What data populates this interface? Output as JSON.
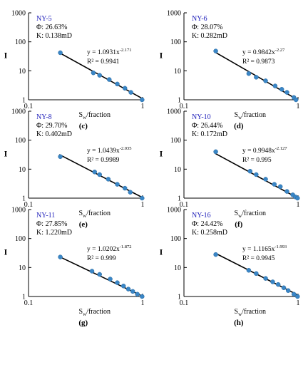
{
  "figure": {
    "xlabel_main": "S",
    "xlabel_sub": "w",
    "xlabel_rest": "/fraction",
    "ylabel": "I",
    "x_ticks": [
      "0.1",
      "1"
    ],
    "y_ticks": [
      "1",
      "10",
      "100",
      "1000"
    ]
  },
  "chart_data": [
    {
      "type": "scatter",
      "panel": "(c)",
      "sample": "NY-5",
      "porosity": "Φ:  26.63%",
      "permeability": "K:  0.138mD",
      "fit": {
        "a": "1.0931",
        "b": "-2.171",
        "r2": "0.9941"
      },
      "xlim": [
        0.1,
        1
      ],
      "ylim": [
        1,
        1000
      ],
      "xscale": "log",
      "yscale": "log",
      "grid": false,
      "points": [
        [
          0.19,
          42
        ],
        [
          0.37,
          8.5
        ],
        [
          0.42,
          7
        ],
        [
          0.51,
          5
        ],
        [
          0.6,
          3.5
        ],
        [
          0.7,
          2.5
        ],
        [
          0.79,
          1.8
        ],
        [
          0.99,
          1
        ]
      ]
    },
    {
      "type": "scatter",
      "panel": "(d)",
      "sample": "NY-6",
      "porosity": "Φ:  28.07%",
      "permeability": "K:  0.282mD",
      "fit": {
        "a": "0.9842",
        "b": "-2.27",
        "r2": "0.9873"
      },
      "xlim": [
        0.1,
        1
      ],
      "ylim": [
        1,
        1000
      ],
      "xscale": "log",
      "yscale": "log",
      "grid": false,
      "points": [
        [
          0.19,
          48
        ],
        [
          0.37,
          8
        ],
        [
          0.43,
          6
        ],
        [
          0.52,
          4.5
        ],
        [
          0.63,
          3
        ],
        [
          0.72,
          2.3
        ],
        [
          0.8,
          1.8
        ],
        [
          0.92,
          1.2
        ],
        [
          0.96,
          1
        ]
      ]
    },
    {
      "type": "scatter",
      "panel": "(e)",
      "sample": "NY-8",
      "porosity": "Φ:  29.70%",
      "permeability": "K:  0.402mD",
      "fit": {
        "a": "1.0439",
        "b": "-2.035",
        "r2": "0.9989"
      },
      "xlim": [
        0.1,
        1
      ],
      "ylim": [
        1,
        1000
      ],
      "xscale": "log",
      "yscale": "log",
      "grid": false,
      "points": [
        [
          0.19,
          27
        ],
        [
          0.38,
          8
        ],
        [
          0.42,
          6.5
        ],
        [
          0.5,
          4.5
        ],
        [
          0.6,
          3
        ],
        [
          0.7,
          2.2
        ],
        [
          0.78,
          1.6
        ],
        [
          0.99,
          1
        ]
      ]
    },
    {
      "type": "scatter",
      "panel": "(f)",
      "sample": "NY-10",
      "porosity": "Φ:  26.44%",
      "permeability": "K:  0.172mD",
      "fit": {
        "a": "0.9948",
        "b": "-2.127",
        "r2": "0.995"
      },
      "xlim": [
        0.1,
        1
      ],
      "ylim": [
        1,
        1000
      ],
      "xscale": "log",
      "yscale": "log",
      "grid": false,
      "points": [
        [
          0.19,
          40
        ],
        [
          0.38,
          8.5
        ],
        [
          0.43,
          6.5
        ],
        [
          0.52,
          4.5
        ],
        [
          0.62,
          3
        ],
        [
          0.7,
          2.5
        ],
        [
          0.8,
          1.7
        ],
        [
          0.9,
          1.3
        ],
        [
          0.95,
          1.1
        ],
        [
          0.99,
          1
        ]
      ]
    },
    {
      "type": "scatter",
      "panel": "(g)",
      "sample": "NY-11",
      "porosity": "Φ:  27.85%",
      "permeability": "K:  1.220mD",
      "fit": {
        "a": "1.0202",
        "b": "-1.872",
        "r2": "0.999"
      },
      "xlim": [
        0.1,
        1
      ],
      "ylim": [
        1,
        1000
      ],
      "xscale": "log",
      "yscale": "log",
      "grid": false,
      "points": [
        [
          0.19,
          23
        ],
        [
          0.36,
          7.5
        ],
        [
          0.42,
          5.8
        ],
        [
          0.52,
          4
        ],
        [
          0.6,
          3
        ],
        [
          0.68,
          2.3
        ],
        [
          0.75,
          1.8
        ],
        [
          0.82,
          1.5
        ],
        [
          0.9,
          1.2
        ],
        [
          0.99,
          1
        ]
      ]
    },
    {
      "type": "scatter",
      "panel": "(h)",
      "sample": "NY-16",
      "porosity": "Φ:  24.42%",
      "permeability": "K:  0.258mD",
      "fit": {
        "a": "1.1165",
        "b": "-1.993",
        "r2": "0.9945"
      },
      "xlim": [
        0.1,
        1
      ],
      "ylim": [
        1,
        1000
      ],
      "xscale": "log",
      "yscale": "log",
      "grid": false,
      "points": [
        [
          0.19,
          28
        ],
        [
          0.37,
          8
        ],
        [
          0.43,
          6.2
        ],
        [
          0.52,
          4.2
        ],
        [
          0.6,
          3.2
        ],
        [
          0.67,
          2.6
        ],
        [
          0.75,
          2
        ],
        [
          0.82,
          1.6
        ],
        [
          0.92,
          1.2
        ],
        [
          0.99,
          1
        ]
      ]
    }
  ]
}
